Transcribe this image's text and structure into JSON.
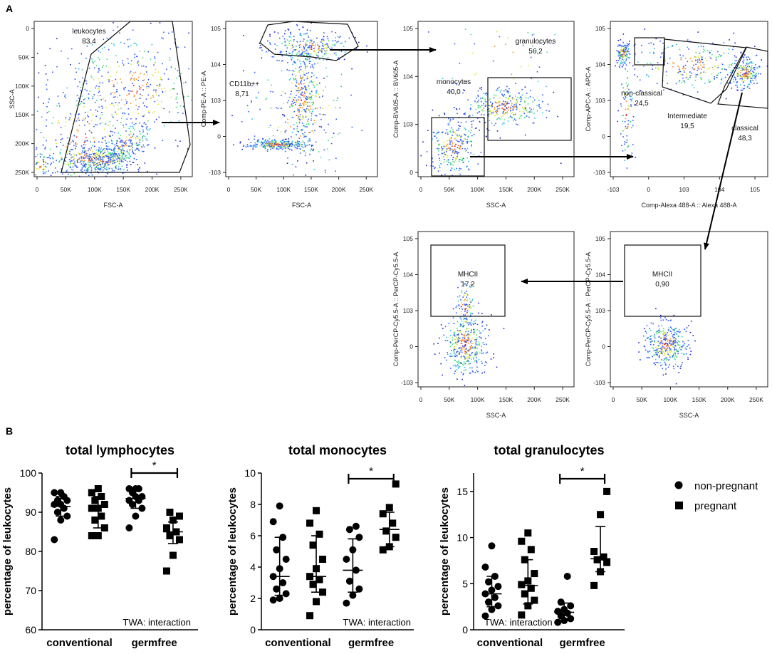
{
  "figure": {
    "panel_a_label": "A",
    "panel_b_label": "B",
    "legend": {
      "circle_label": "non-pregnant",
      "square_label": "pregnant"
    }
  },
  "flow_plots": [
    {
      "id": "p1",
      "xlabel": "FSC-A",
      "ylabel": "SSC-A",
      "xticks": [
        "0",
        "50K",
        "100K",
        "150K",
        "200K",
        "250K"
      ],
      "yticks": [
        "0",
        "50K",
        "100K",
        "150K",
        "200K",
        "250K"
      ],
      "gate_label": "leukocytes",
      "gate_value": "83,4"
    },
    {
      "id": "p2",
      "xlabel": "FSC-A",
      "ylabel": "Comp-PE-A :: PE-A",
      "xticks": [
        "0",
        "50K",
        "100K",
        "150K",
        "200K",
        "250K"
      ],
      "yticks": [
        "10^5",
        "10^4",
        "10^3",
        "0",
        "-10^3"
      ],
      "gate_label": "CD11b++",
      "gate_value": "8,71"
    },
    {
      "id": "p3",
      "xlabel": "SSC-A",
      "ylabel": "Comp-BV605-A :: BV605-A",
      "xticks": [
        "0",
        "50K",
        "100K",
        "150K",
        "200K",
        "250K"
      ],
      "yticks": [
        "10^5",
        "10^4",
        "10^3",
        "0"
      ],
      "gates": [
        {
          "label": "granulocytes",
          "value": "56,2"
        },
        {
          "label": "monocytes",
          "value": "40,0"
        }
      ]
    },
    {
      "id": "p4",
      "xlabel": "Comp-Alexa 488-A :: Alexa 488-A",
      "ylabel": "Comp-APC-A :: APC-A",
      "xticks": [
        "-10^3",
        "0",
        "10^3",
        "10^4",
        "10^5"
      ],
      "yticks": [
        "10^5",
        "10^4",
        "10^3",
        "0",
        "-10^3"
      ],
      "gates": [
        {
          "label": "non-classical",
          "value": "24,5"
        },
        {
          "label": "Intermediate",
          "value": "19,5"
        },
        {
          "label": "classical",
          "value": "48,3"
        }
      ]
    },
    {
      "id": "p5",
      "xlabel": "SSC-A",
      "ylabel": "Comp-PerCP-Cy5.5-A :: PerCP-Cy5.5-A",
      "xticks": [
        "0",
        "50K",
        "100K",
        "150K",
        "200K",
        "250K"
      ],
      "yticks": [
        "10^5",
        "10^4",
        "10^3",
        "0",
        "-10^3"
      ],
      "gate_label": "MHCII",
      "gate_value": "17,2"
    },
    {
      "id": "p6",
      "xlabel": "SSC-A",
      "ylabel": "Comp-PerCP-Cy5.5-A :: PerCP-Cy5.5-A",
      "xticks": [
        "0",
        "50K",
        "100K",
        "150K",
        "200K",
        "250K"
      ],
      "yticks": [
        "10^5",
        "10^4",
        "10^3",
        "0",
        "-10^3"
      ],
      "gate_label": "MHCII",
      "gate_value": "0,90"
    }
  ],
  "chart_data": [
    {
      "type": "scatter",
      "title": "total lymphocytes",
      "ylabel": "percentage of leukocytes",
      "xlabel": "",
      "categories": [
        "conventional",
        "germfree"
      ],
      "ylim": [
        60,
        100
      ],
      "yticks": [
        60,
        70,
        80,
        90,
        100
      ],
      "annotation": "TWA: interaction",
      "significance": {
        "label": "*",
        "between": "germfree non-pregnant vs pregnant"
      },
      "series": [
        {
          "name": "non-pregnant",
          "marker": "circle",
          "groups": [
            {
              "category": "conventional",
              "mean": 91.5,
              "sd": [
                89,
                94
              ],
              "values": [
                83,
                88,
                89,
                90,
                91,
                92,
                92,
                93,
                93,
                94,
                95,
                95
              ]
            },
            {
              "category": "germfree",
              "mean": 93.5,
              "sd": [
                91,
                96
              ],
              "values": [
                86,
                89,
                91,
                92,
                93,
                93,
                94,
                94,
                95,
                96,
                96,
                96
              ]
            }
          ]
        },
        {
          "name": "pregnant",
          "marker": "square",
          "groups": [
            {
              "category": "conventional",
              "mean": 91.5,
              "sd": [
                86,
                94
              ],
              "values": [
                84,
                84,
                86,
                88,
                89,
                91,
                91,
                92,
                93,
                94,
                95,
                96
              ]
            },
            {
              "category": "germfree",
              "mean": 85,
              "sd": [
                82,
                87.5
              ],
              "values": [
                75,
                79,
                83,
                84,
                85,
                86,
                88,
                89,
                90
              ]
            }
          ]
        }
      ]
    },
    {
      "type": "scatter",
      "title": "total monocytes",
      "ylabel": "percentage of leukocytes",
      "xlabel": "",
      "categories": [
        "conventional",
        "germfree"
      ],
      "ylim": [
        0,
        10
      ],
      "yticks": [
        0,
        2,
        4,
        6,
        8,
        10
      ],
      "annotation": "TWA: interaction",
      "significance": {
        "label": "*",
        "between": "germfree non-pregnant vs pregnant"
      },
      "series": [
        {
          "name": "non-pregnant",
          "marker": "circle",
          "groups": [
            {
              "category": "conventional",
              "mean": 3.4,
              "sd": [
                2.2,
                5.9
              ],
              "values": [
                1.9,
                2.0,
                2.3,
                2.6,
                3.0,
                3.4,
                3.9,
                4.5,
                5.1,
                5.9,
                6.9,
                7.9
              ]
            },
            {
              "category": "germfree",
              "mean": 3.8,
              "sd": [
                2.4,
                5.8
              ],
              "values": [
                1.7,
                2.2,
                2.6,
                3.1,
                3.8,
                4.5,
                5.1,
                5.9,
                6.4,
                6.6
              ]
            }
          ]
        },
        {
          "name": "pregnant",
          "marker": "square",
          "groups": [
            {
              "category": "conventional",
              "mean": 3.4,
              "sd": [
                2.4,
                6.0
              ],
              "values": [
                0.9,
                1.8,
                2.4,
                2.9,
                3.2,
                3.4,
                3.9,
                4.5,
                5.4,
                6.1,
                6.8,
                7.6
              ]
            },
            {
              "category": "germfree",
              "mean": 6.4,
              "sd": [
                5.3,
                7.5
              ],
              "values": [
                5.1,
                5.3,
                5.9,
                6.3,
                6.8,
                7.4,
                7.8,
                9.3
              ]
            }
          ]
        }
      ]
    },
    {
      "type": "scatter",
      "title": "total granulocytes",
      "ylabel": "percentage of leukocytes",
      "xlabel": "",
      "categories": [
        "conventional",
        "germfree"
      ],
      "ylim": [
        0,
        17
      ],
      "yticks": [
        0,
        5,
        10,
        15
      ],
      "annotation": "TWA: interaction",
      "significance": {
        "label": "*",
        "between": "germfree non-pregnant vs pregnant"
      },
      "series": [
        {
          "name": "non-pregnant",
          "marker": "circle",
          "groups": [
            {
              "category": "conventional",
              "mean": 3.9,
              "sd": [
                2.5,
                5.8
              ],
              "values": [
                1.5,
                2.2,
                2.6,
                3.0,
                3.5,
                3.9,
                4.3,
                4.7,
                5.2,
                5.8,
                6.8,
                9.1
              ]
            },
            {
              "category": "germfree",
              "mean": 1.9,
              "sd": [
                1.2,
                2.9
              ],
              "values": [
                0.8,
                1.0,
                1.2,
                1.5,
                1.8,
                2.0,
                2.2,
                2.6,
                3.0,
                5.8
              ]
            }
          ]
        },
        {
          "name": "pregnant",
          "marker": "square",
          "groups": [
            {
              "category": "conventional",
              "mean": 4.8,
              "sd": [
                2.8,
                7.6
              ],
              "values": [
                1.6,
                2.6,
                3.2,
                3.9,
                4.5,
                4.9,
                5.3,
                6.1,
                7.6,
                8.7,
                9.6,
                10.5
              ]
            },
            {
              "category": "germfree",
              "mean": 7.7,
              "sd": [
                6.3,
                11.2
              ],
              "values": [
                4.8,
                6.3,
                7.3,
                7.6,
                7.9,
                8.5,
                12.5,
                15.0
              ]
            }
          ]
        }
      ]
    }
  ]
}
